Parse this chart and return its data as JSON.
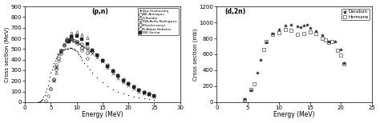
{
  "plot1": {
    "label": "(p,n)",
    "xlabel": "Energy (MeV)",
    "ylabel": "Cross section (MeV)",
    "xlim": [
      0,
      30
    ],
    "ylim": [
      0,
      900
    ],
    "yticks": [
      0,
      100,
      200,
      300,
      400,
      500,
      600,
      700,
      800,
      900
    ],
    "xticks": [
      0,
      5,
      10,
      15,
      20,
      25,
      30
    ],
    "legend_entries": [
      {
        "label": "B.Ja.Guzhovskij",
        "marker": ".",
        "ms": 2.5,
        "filled": true
      },
      {
        "label": "A.E.Antropov",
        "marker": "o",
        "ms": 3.0,
        "filled": false
      },
      {
        "label": "S.Tanaka",
        "marker": "^",
        "ms": 3.0,
        "filled": false
      },
      {
        "label": "M.A.Avila-Rodriguez",
        "marker": "x",
        "ms": 3.0,
        "filled": false
      },
      {
        "label": "F.Szelecsenyi",
        "marker": "D",
        "ms": 2.5,
        "filled": false
      },
      {
        "label": "R.Adam Rebeles",
        "marker": "o",
        "ms": 3.0,
        "filled": false
      },
      {
        "label": "M.E.Sevior",
        "marker": "s",
        "ms": 2.5,
        "filled": true
      }
    ],
    "series": {
      "B.Ja.Guzhovskij": {
        "marker": ".",
        "ms": 1.5,
        "filled": true,
        "x": [
          2.5,
          2.7,
          2.9,
          3.1,
          3.2,
          3.4,
          3.6,
          3.8,
          4.0,
          4.2,
          4.4,
          4.6,
          4.8,
          5.0,
          5.2,
          5.4,
          5.6,
          5.8,
          6.0,
          6.2,
          6.4,
          6.6,
          6.8,
          7.0,
          7.2,
          7.4,
          7.6,
          7.8,
          8.0,
          8.2,
          8.4,
          8.6,
          8.8,
          9.0,
          9.2,
          9.4,
          9.6,
          9.8,
          10.0,
          10.2,
          10.4,
          10.6,
          10.8,
          11.0,
          11.5,
          12.0,
          12.5,
          13.0,
          14.0,
          15.0,
          16.0,
          17.0,
          18.0,
          19.0,
          20.0,
          21.0,
          22.0,
          23.0,
          24.0,
          25.0
        ],
        "y": [
          2,
          5,
          10,
          15,
          20,
          30,
          50,
          70,
          100,
          130,
          160,
          200,
          240,
          280,
          310,
          340,
          370,
          390,
          410,
          430,
          450,
          470,
          480,
          490,
          495,
          497,
          498,
          499,
          500,
          502,
          505,
          508,
          510,
          508,
          505,
          500,
          495,
          490,
          480,
          465,
          450,
          435,
          420,
          400,
          370,
          340,
          310,
          280,
          230,
          185,
          150,
          120,
          100,
          80,
          65,
          52,
          42,
          35,
          28,
          22
        ]
      },
      "A.E.Antropov": {
        "marker": "o",
        "ms": 2.5,
        "filled": false,
        "x": [
          4.0,
          4.5,
          5.0,
          5.5,
          6.0,
          6.5,
          7.0,
          7.5,
          8.0,
          9.0,
          10.0,
          11.0,
          12.0
        ],
        "y": [
          15,
          60,
          130,
          220,
          330,
          390,
          460,
          530,
          590,
          620,
          570,
          490,
          410
        ]
      },
      "S.Tanaka": {
        "marker": "^",
        "ms": 2.5,
        "filled": false,
        "x": [
          6.0,
          7.0,
          8.0,
          9.0,
          10.0,
          11.0,
          12.0
        ],
        "y": [
          280,
          470,
          600,
          650,
          660,
          640,
          610
        ]
      },
      "M.A.Avila-Rodriguez": {
        "marker": "x",
        "ms": 2.5,
        "filled": false,
        "x": [
          5.5,
          6.0,
          6.5,
          7.0,
          7.5,
          8.0,
          8.5,
          9.0,
          9.5,
          10.0,
          10.5,
          11.0,
          11.5,
          12.0,
          12.5,
          13.0,
          14.0,
          15.0,
          16.0,
          17.0,
          18.0,
          19.0,
          20.0,
          21.0,
          22.0,
          23.0,
          24.0,
          25.0
        ],
        "y": [
          200,
          330,
          450,
          490,
          540,
          570,
          590,
          590,
          580,
          565,
          550,
          535,
          520,
          500,
          480,
          460,
          420,
          380,
          320,
          270,
          225,
          185,
          155,
          125,
          100,
          82,
          65,
          52
        ]
      },
      "F.Szelecsenyi": {
        "marker": "D",
        "ms": 2.5,
        "filled": false,
        "x": [
          5.5,
          6.0,
          6.5,
          7.0,
          7.5,
          8.0,
          8.5,
          9.0,
          9.5,
          10.0,
          11.0,
          12.0
        ],
        "y": [
          210,
          310,
          410,
          490,
          540,
          575,
          585,
          590,
          575,
          555,
          510,
          465
        ]
      },
      "R.Adam Rebeles": {
        "marker": "o",
        "ms": 2.5,
        "filled": false,
        "x": [
          5.0,
          6.0,
          7.0,
          8.0,
          9.0,
          10.0,
          11.0,
          12.0,
          13.0,
          14.0,
          15.0,
          16.0,
          17.0,
          18.0,
          19.0,
          20.0,
          21.0,
          22.0,
          23.0,
          24.0,
          25.0
        ],
        "y": [
          130,
          350,
          480,
          580,
          600,
          570,
          545,
          510,
          480,
          440,
          395,
          350,
          300,
          255,
          215,
          180,
          150,
          122,
          98,
          80,
          62
        ]
      },
      "M.E.Sevior": {
        "marker": "s",
        "ms": 2.5,
        "filled": true,
        "x": [
          8.5,
          9.0,
          10.0,
          11.0,
          12.0,
          13.0,
          14.0,
          15.0,
          16.0,
          17.0,
          18.0,
          19.0,
          20.0,
          21.0,
          22.0,
          23.0,
          24.0,
          25.0
        ],
        "y": [
          570,
          615,
          620,
          590,
          545,
          490,
          440,
          390,
          340,
          290,
          245,
          200,
          170,
          140,
          115,
          93,
          75,
          58
        ]
      }
    }
  },
  "plot2": {
    "label": "(d,2n)",
    "xlabel": "Energy (MeV)",
    "ylabel": "Cross section (mb)",
    "xlim": [
      0,
      25
    ],
    "ylim": [
      0,
      1200
    ],
    "yticks": [
      0,
      200,
      400,
      600,
      800,
      1000,
      1200
    ],
    "xticks": [
      0,
      5,
      10,
      15,
      20,
      25
    ],
    "legend_entries": [
      {
        "label": "Daraban",
        "marker": "*",
        "ms": 3.5,
        "filled": true
      },
      {
        "label": "Hermane",
        "marker": "s",
        "ms": 3.0,
        "filled": false
      }
    ],
    "series": {
      "Daraban": {
        "marker": "*",
        "ms": 3.0,
        "filled": true,
        "x": [
          4.5,
          5.5,
          6.5,
          7.0,
          8.0,
          9.0,
          10.0,
          11.0,
          12.0,
          13.0,
          13.5,
          14.0,
          14.5,
          15.0,
          16.0,
          17.0,
          18.0,
          19.0,
          20.0,
          20.5
        ],
        "y": [
          40,
          150,
          370,
          530,
          745,
          865,
          910,
          960,
          975,
          950,
          945,
          960,
          970,
          930,
          895,
          840,
          760,
          755,
          660,
          490
        ]
      },
      "Hermane": {
        "marker": "s",
        "ms": 2.5,
        "filled": false,
        "x": [
          4.5,
          5.5,
          6.0,
          7.5,
          8.0,
          9.0,
          10.0,
          11.0,
          12.0,
          13.0,
          14.0,
          15.0,
          16.0,
          17.0,
          17.5,
          18.0,
          18.5,
          19.5,
          20.0,
          20.5
        ],
        "y": [
          25,
          155,
          225,
          660,
          755,
          850,
          870,
          910,
          905,
          855,
          865,
          885,
          865,
          800,
          775,
          745,
          755,
          645,
          590,
          480
        ]
      }
    }
  },
  "bg_color": "#ffffff",
  "text_color": "#000000",
  "marker_color": "#222222"
}
